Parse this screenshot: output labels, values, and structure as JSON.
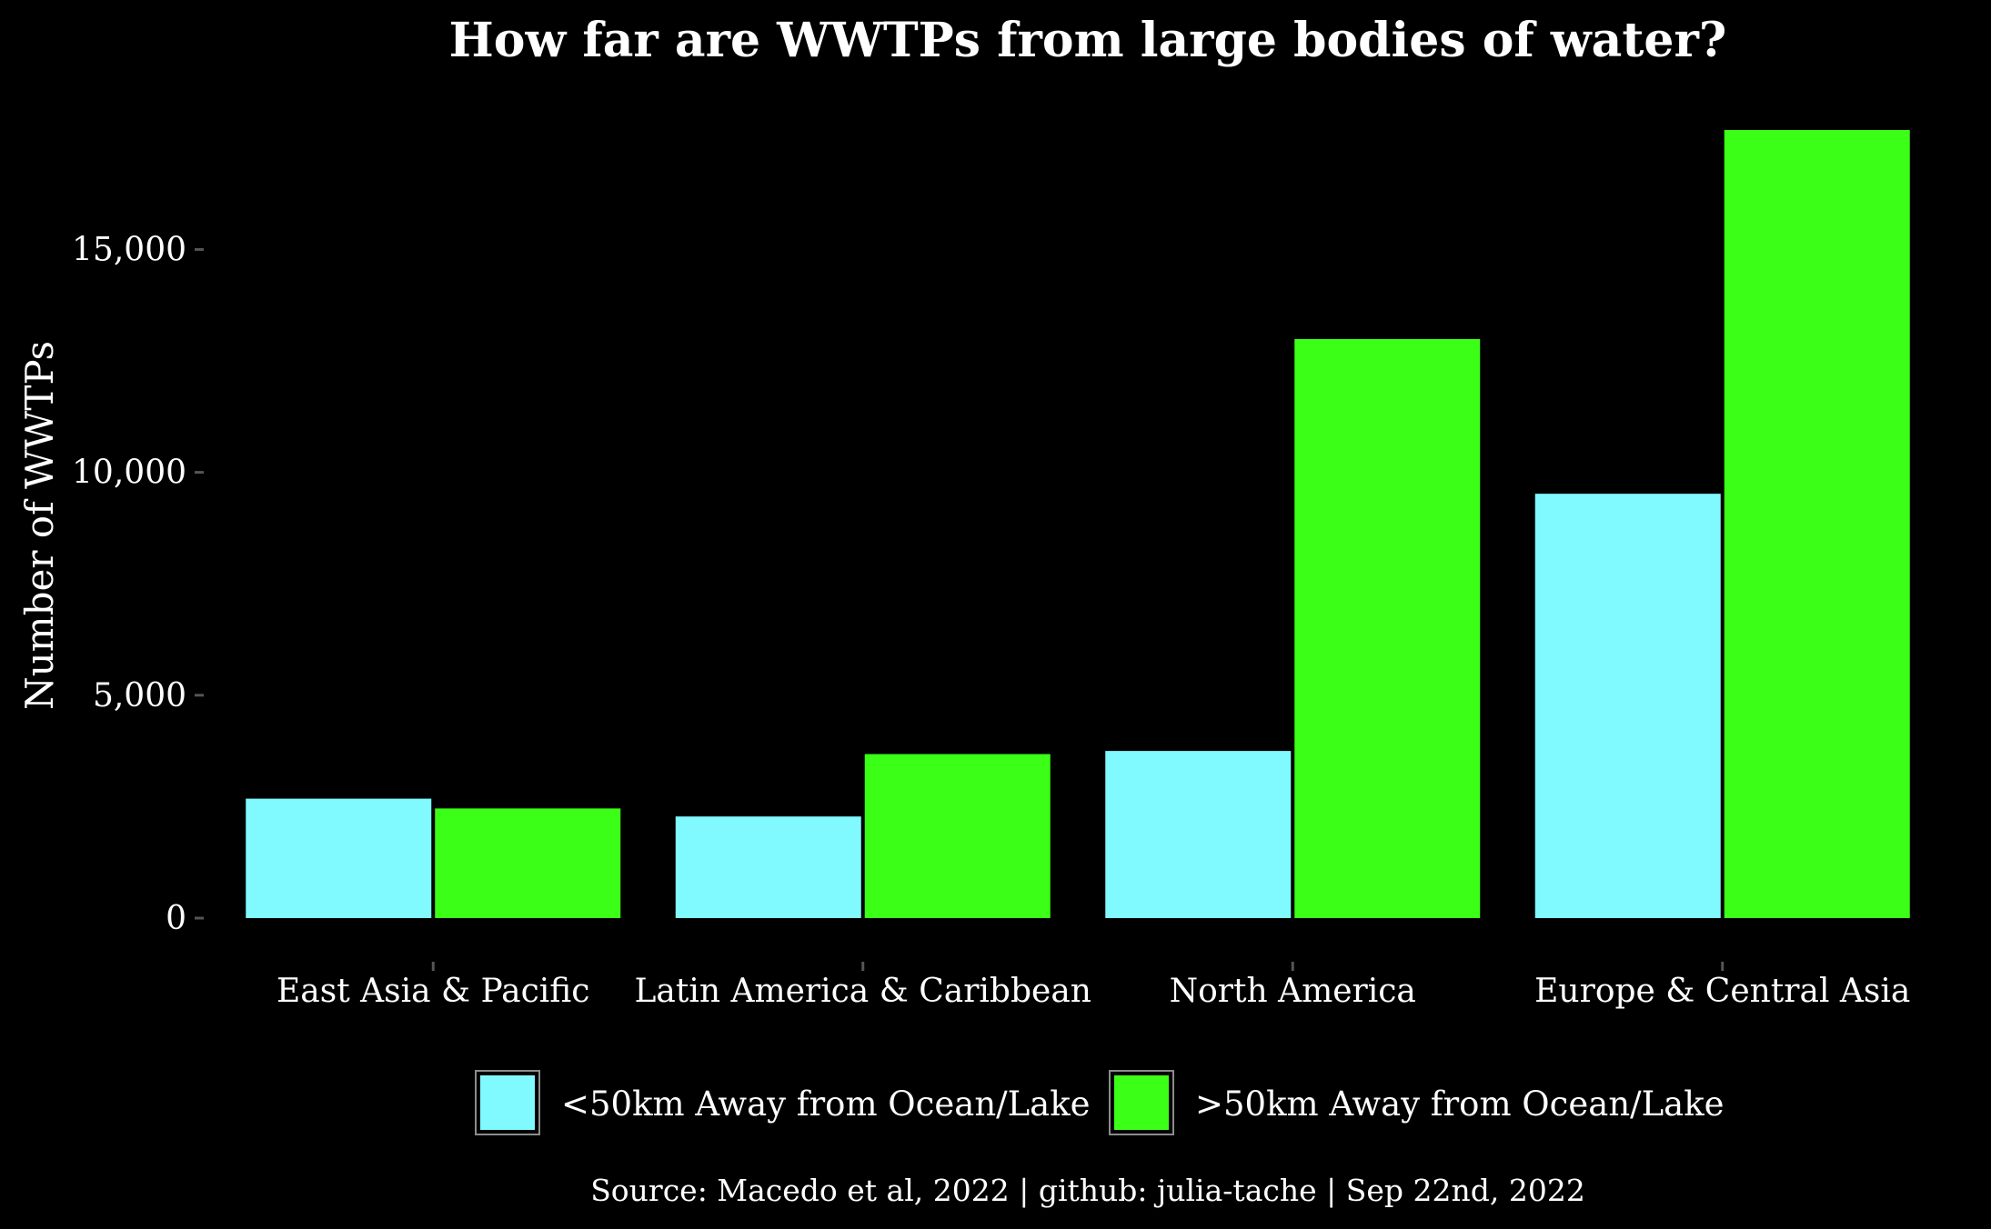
{
  "chart_data": {
    "type": "bar",
    "title": "How far are WWTPs from large bodies of water?",
    "xlabel": "",
    "ylabel": "Number of WWTPs",
    "categories": [
      "East Asia & Pacific",
      "Latin America & Caribbean",
      "North America",
      "Europe & Central Asia"
    ],
    "series": [
      {
        "name": "<50km Away from Ocean/Lake",
        "color": "#80f9ff",
        "values": [
          2680,
          2280,
          3750,
          9520
        ]
      },
      {
        "name": ">50km Away from Ocean/Lake",
        "color": "#3bff16",
        "values": [
          2460,
          3680,
          12990,
          17680
        ]
      }
    ],
    "ylim": [
      0,
      17680
    ],
    "yticks": [
      0,
      5000,
      10000,
      15000
    ],
    "ytick_labels": [
      "0",
      "5,000",
      "10,000",
      "15,000"
    ],
    "grid": false,
    "legend_position": "bottom",
    "caption": "Source: Macedo et al, 2022 | github: julia-tache | Sep 22nd, 2022",
    "colors": {
      "background": "#000000",
      "text": "#ffffff",
      "tick": "#555555"
    }
  }
}
